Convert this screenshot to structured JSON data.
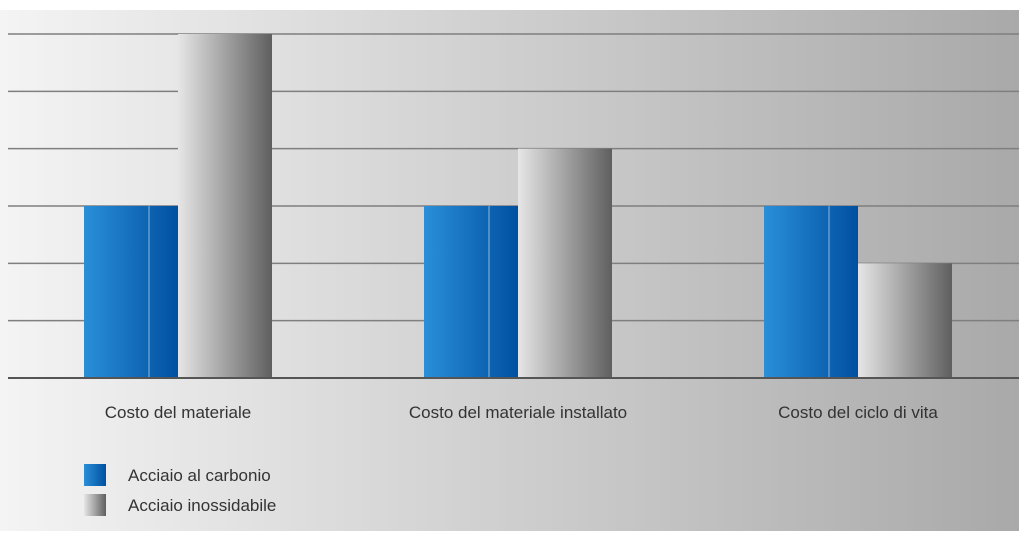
{
  "chart_data": {
    "type": "bar",
    "title": "",
    "xlabel": "",
    "ylabel": "",
    "categories": [
      "Costo del materiale",
      "Costo del materiale installato",
      "Costo del ciclo di vita"
    ],
    "series": [
      {
        "name": "Acciaio al carbonio",
        "values": [
          3,
          3,
          3
        ]
      },
      {
        "name": "Acciaio inossidabile",
        "values": [
          6,
          4,
          2
        ]
      }
    ],
    "ylim": [
      0,
      6
    ],
    "y_gridlines": true,
    "y_tick_labels_shown": false,
    "legend_position": "bottom-left",
    "colors": {
      "series_1_light": "#2a8fd8",
      "series_1_dark": "#0050a0",
      "series_2_light": "#e6e6e6",
      "series_2_dark": "#5f5f5f",
      "background_light": "#f4f4f4",
      "background_dark": "#a9a9a9",
      "gridline": "#7f7f7f",
      "text": "#333333"
    }
  }
}
